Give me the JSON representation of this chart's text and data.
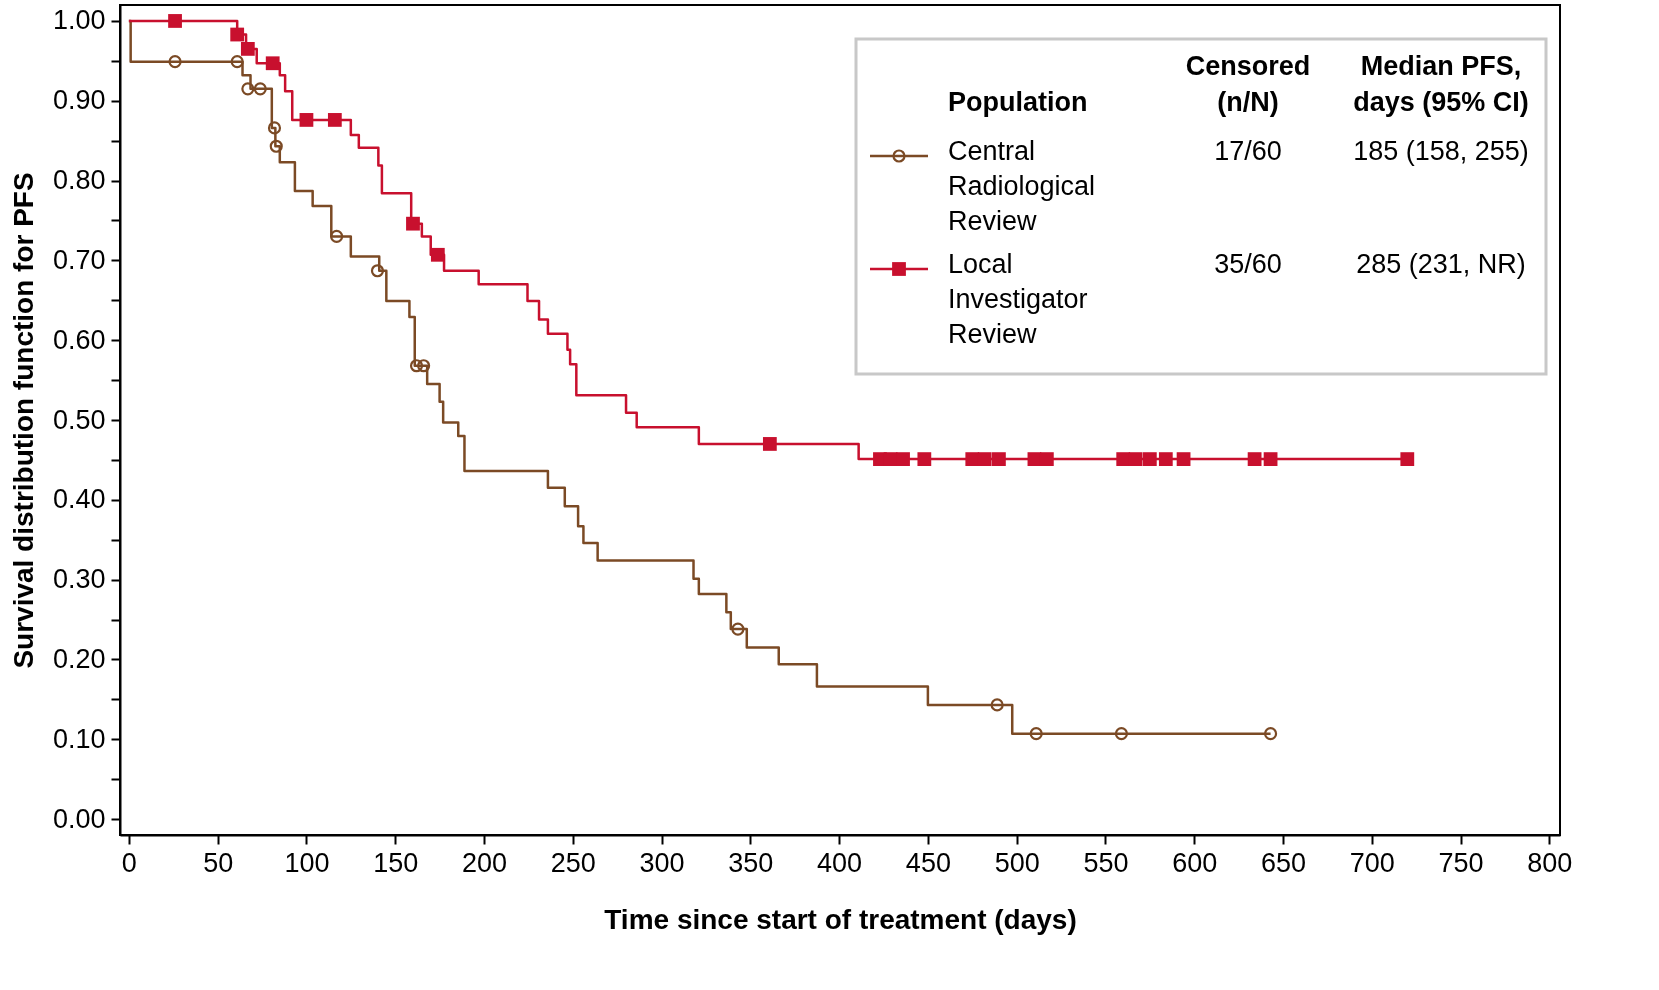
{
  "chart_data": {
    "type": "step",
    "xlabel": "Time since start of treatment (days)",
    "ylabel": "Survival distribution function for PFS",
    "legend_title": "Population",
    "legend": "top right",
    "grid": false,
    "xlim": [
      -5,
      806
    ],
    "xticks": [
      0,
      50,
      100,
      150,
      200,
      250,
      300,
      350,
      400,
      450,
      500,
      550,
      600,
      650,
      700,
      750,
      800
    ],
    "ylim": [
      -0.02,
      1.02
    ],
    "yticks": [
      {
        "value": 0,
        "label": "0.00"
      },
      {
        "value": 0.05,
        "label": null
      },
      {
        "value": 0.1,
        "label": "0.10"
      },
      {
        "value": 0.15,
        "label": null
      },
      {
        "value": 0.2,
        "label": "0.20"
      },
      {
        "value": 0.25,
        "label": null
      },
      {
        "value": 0.3,
        "label": "0.30"
      },
      {
        "value": 0.35,
        "label": null
      },
      {
        "value": 0.4,
        "label": "0.40"
      },
      {
        "value": 0.45,
        "label": null
      },
      {
        "value": 0.5,
        "label": "0.50"
      },
      {
        "value": 0.55,
        "label": null
      },
      {
        "value": 0.6,
        "label": "0.60"
      },
      {
        "value": 0.65,
        "label": null
      },
      {
        "value": 0.7,
        "label": "0.70"
      },
      {
        "value": 0.75,
        "label": null
      },
      {
        "value": 0.8,
        "label": "0.80"
      },
      {
        "value": 0.85,
        "label": null
      },
      {
        "value": 0.9,
        "label": "0.90"
      },
      {
        "value": 0.95,
        "label": null
      },
      {
        "value": 1,
        "label": "1.00"
      }
    ],
    "annotations": [
      "Censored (n/N)",
      "Median PFS, days (95% CI)",
      "17/60",
      "185 (158, 255)",
      "35/60",
      "285 (231, NR)"
    ],
    "series": [
      {
        "name": "Central Radiological Review",
        "type": "step",
        "marker": "none",
        "color": "#7b4a25",
        "x": [
          0,
          1,
          64,
          68.5,
          80.5,
          82.5,
          85,
          93.5,
          103.5,
          114,
          125,
          141,
          145,
          158,
          161,
          168,
          175,
          177,
          185.5,
          189,
          236,
          245.5,
          253,
          256,
          264,
          318,
          321,
          336.5,
          339,
          348,
          366,
          387.5,
          450,
          497.5,
          643
        ],
        "values": [
          1.0,
          0.949,
          0.932,
          0.915,
          0.866,
          0.843,
          0.823,
          0.787,
          0.768,
          0.73,
          0.705,
          0.687,
          0.649,
          0.629,
          0.568,
          0.545,
          0.523,
          0.497,
          0.48,
          0.436,
          0.415,
          0.392,
          0.367,
          0.346,
          0.324,
          0.301,
          0.282,
          0.259,
          0.238,
          0.215,
          0.194,
          0.166,
          0.143,
          0.107,
          0.107
        ]
      },
      {
        "name": "Local Investigator Review",
        "type": "step",
        "marker": "none",
        "color": "#c8102e",
        "x": [
          0,
          61,
          66,
          72,
          85,
          88,
          92,
          125,
          129.5,
          140.5,
          142.5,
          159,
          165,
          170,
          177.5,
          197,
          224.5,
          231,
          236,
          247,
          248.5,
          252,
          280,
          286,
          321,
          411,
          720
        ],
        "values": [
          1.0,
          0.983,
          0.965,
          0.947,
          0.932,
          0.912,
          0.876,
          0.857,
          0.841,
          0.819,
          0.784,
          0.746,
          0.73,
          0.707,
          0.687,
          0.67,
          0.649,
          0.626,
          0.608,
          0.588,
          0.57,
          0.531,
          0.509,
          0.491,
          0.47,
          0.451,
          0.451
        ]
      },
      {
        "type": "scatter",
        "marker": "circle",
        "color": "#7b4a25",
        "x": [
          26,
          61,
          67,
          74,
          82,
          83,
          117,
          140,
          162,
          166,
          343,
          489,
          511,
          559,
          643
        ],
        "values": [
          0.949,
          0.949,
          0.915,
          0.915,
          0.866,
          0.843,
          0.73,
          0.687,
          0.568,
          0.568,
          0.238,
          0.143,
          0.107,
          0.107,
          0.107
        ]
      },
      {
        "type": "scatter",
        "marker": "square",
        "color": "#c8102e",
        "x": [
          26,
          61,
          67,
          81,
          100,
          116,
          160,
          174,
          361,
          423,
          429,
          436,
          448,
          475,
          482,
          490,
          510,
          517,
          560,
          567,
          575,
          584,
          594,
          634,
          643,
          720
        ],
        "values": [
          1.0,
          0.983,
          0.965,
          0.947,
          0.876,
          0.876,
          0.746,
          0.707,
          0.47,
          0.451,
          0.451,
          0.451,
          0.451,
          0.451,
          0.451,
          0.451,
          0.451,
          0.451,
          0.451,
          0.451,
          0.451,
          0.451,
          0.451,
          0.451,
          0.451,
          0.451
        ]
      }
    ]
  }
}
